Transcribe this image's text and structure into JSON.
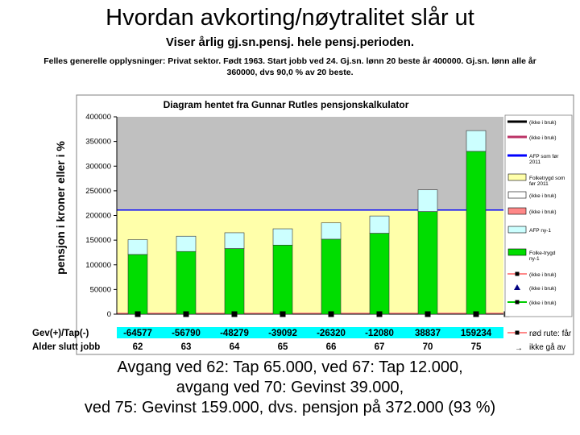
{
  "header": {
    "title": "Hvordan avkorting/nøytralitet slår ut",
    "subtitle": "Viser årlig gj.sn.pensj. hele pensj.perioden.",
    "info_lines": [
      "Felles generelle opplysninger: Privat sektor. Født 1963. Start jobb ved 24. Gj.sn. lønn 20 beste år 400000. Gj.sn. lønn alle år",
      "360000, dvs 90,0 % av 20 beste."
    ]
  },
  "chart_data": {
    "type": "bar",
    "title": "Diagram hentet fra Gunnar Rutles pensjonskalkulator",
    "ylabel": "pensjon i kroner eller i %",
    "ylim": [
      0,
      400000
    ],
    "yticks": [
      "0",
      "50000",
      "100000",
      "150000",
      "200000",
      "250000",
      "300000",
      "350000",
      "400000"
    ],
    "categories": [
      "62",
      "63",
      "64",
      "65",
      "66",
      "67",
      "70",
      "75"
    ],
    "folketrygd_2011_level": 211000,
    "series": [
      {
        "name": "Folke-trygd ny-1",
        "color": "#00dd00",
        "values": [
          121000,
          127000,
          133000,
          140000,
          152000,
          164000,
          208000,
          330000
        ]
      },
      {
        "name": "AFP ny-1",
        "color": "#ccffff",
        "values": [
          30000,
          31000,
          32000,
          33000,
          33000,
          35000,
          44000,
          42000
        ]
      }
    ],
    "legend": [
      {
        "label": "(ikke i bruk)",
        "type": "line",
        "color": "#000000"
      },
      {
        "label": "(ikke i bruk)",
        "type": "line",
        "color": "#bb3366"
      },
      {
        "label": "AFP som før 2011",
        "type": "line",
        "color": "#0000ff"
      },
      {
        "label": "Folketrygd som før 2011",
        "type": "box",
        "color": "#ffffaa"
      },
      {
        "label": "(ikke i bruk)",
        "type": "box",
        "color": "#ffffff"
      },
      {
        "label": "(ikke i bruk)",
        "type": "box",
        "color": "#ff8888"
      },
      {
        "label": "AFP ny-1",
        "type": "box",
        "color": "#ccffff"
      },
      {
        "label": "Folke-trygd ny-1",
        "type": "box",
        "color": "#00dd00"
      },
      {
        "label": "(ikke i bruk)",
        "type": "line-marker",
        "color": "#ff8888"
      },
      {
        "label": "(ikke i bruk)",
        "type": "triangle",
        "color": "#000080"
      },
      {
        "label": "(ikke i bruk)",
        "type": "line-marker",
        "color": "#00cc00"
      }
    ],
    "table": {
      "row1_label": "Gev(+)/Tap(-)",
      "row1_values": [
        "-64577",
        "-56790",
        "-48279",
        "-39092",
        "-26320",
        "-12080",
        "38837",
        "159234"
      ],
      "row2_label": "Alder slutt jobb",
      "row2_values": [
        "62",
        "63",
        "64",
        "65",
        "66",
        "67",
        "70",
        "75"
      ],
      "note1": "rød rute: får",
      "note2": "ikke gå av"
    }
  },
  "conclusion": {
    "line1": "Avgang ved 62: Tap 65.000, ved 67: Tap 12.000,",
    "line2": "avgang ved 70: Gevinst 39.000,",
    "line3": "ved 75: Gevinst 159.000, dvs. pensjon på 372.000 (93 %)"
  },
  "colors": {
    "plot_bg": "#c0c0c0",
    "table_bg": "#00ffff"
  }
}
